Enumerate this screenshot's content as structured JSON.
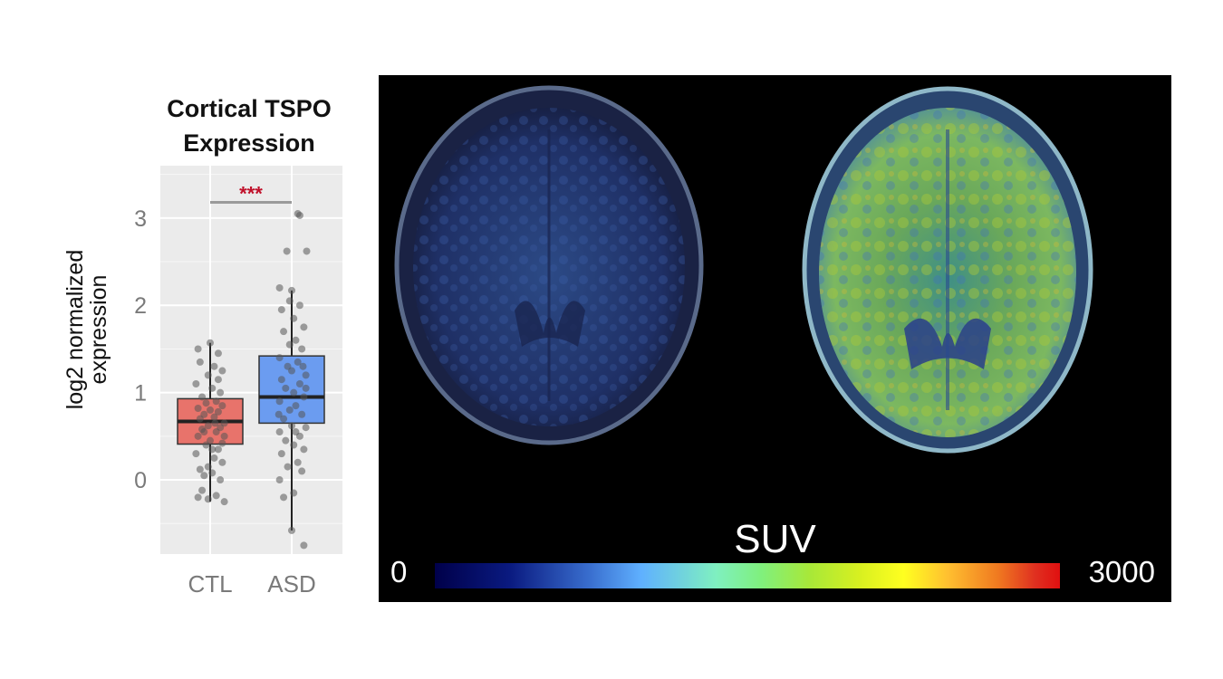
{
  "chart_data": [
    {
      "type": "box",
      "title_lines": [
        "Cortical TSPO",
        "Expression"
      ],
      "ylabel_lines": [
        "log2 normalized",
        "expression"
      ],
      "categories": [
        "CTL",
        "ASD"
      ],
      "yticks": [
        0,
        1,
        2,
        3
      ],
      "ylim": [
        -0.85,
        3.6
      ],
      "grid": true,
      "significance": "***",
      "colors": {
        "CTL": "#e8736b",
        "ASD": "#6b9cf0",
        "significance": "#c0102a"
      },
      "boxes": [
        {
          "name": "CTL",
          "whisker_low": -0.25,
          "q1": 0.41,
          "median": 0.67,
          "q3": 0.93,
          "whisker_high": 1.57
        },
        {
          "name": "ASD",
          "whisker_low": -0.58,
          "q1": 0.65,
          "median": 0.95,
          "q3": 1.42,
          "whisker_high": 2.17
        }
      ],
      "points": {
        "CTL": [
          [
            -0.2,
            -0.12
          ],
          [
            0.15,
            -0.18
          ],
          [
            -0.3,
            -0.2
          ],
          [
            0.35,
            -0.25
          ],
          [
            -0.05,
            -0.22
          ],
          [
            0.25,
            0.0
          ],
          [
            -0.15,
            0.05
          ],
          [
            0.05,
            0.08
          ],
          [
            -0.25,
            0.12
          ],
          [
            0.3,
            0.2
          ],
          [
            0.1,
            0.25
          ],
          [
            -0.35,
            0.3
          ],
          [
            0.2,
            0.35
          ],
          [
            -0.1,
            0.4
          ],
          [
            0.0,
            0.45
          ],
          [
            0.3,
            0.42
          ],
          [
            -0.3,
            0.5
          ],
          [
            0.15,
            0.55
          ],
          [
            -0.2,
            0.58
          ],
          [
            0.25,
            0.6
          ],
          [
            -0.05,
            0.62
          ],
          [
            0.35,
            0.65
          ],
          [
            -0.25,
            0.7
          ],
          [
            0.1,
            0.72
          ],
          [
            -0.15,
            0.75
          ],
          [
            0.2,
            0.78
          ],
          [
            0.0,
            0.8
          ],
          [
            -0.3,
            0.82
          ],
          [
            0.3,
            0.85
          ],
          [
            -0.1,
            0.88
          ],
          [
            0.15,
            0.9
          ],
          [
            -0.2,
            0.95
          ],
          [
            0.25,
            1.0
          ],
          [
            0.05,
            1.05
          ],
          [
            -0.35,
            1.1
          ],
          [
            0.2,
            1.15
          ],
          [
            -0.05,
            1.2
          ],
          [
            0.1,
            1.3
          ],
          [
            -0.25,
            1.35
          ],
          [
            0.3,
            1.25
          ],
          [
            0.0,
            1.57
          ],
          [
            -0.3,
            1.5
          ],
          [
            0.2,
            1.45
          ],
          [
            -0.15,
            0.55
          ],
          [
            0.05,
            0.35
          ],
          [
            0.35,
            0.5
          ],
          [
            -0.05,
            0.15
          ],
          [
            0.12,
            0.65
          ]
        ],
        "ASD": [
          [
            0.0,
            -0.58
          ],
          [
            0.3,
            -0.75
          ],
          [
            -0.2,
            -0.2
          ],
          [
            0.05,
            -0.15
          ],
          [
            -0.3,
            0.0
          ],
          [
            0.25,
            0.1
          ],
          [
            -0.1,
            0.15
          ],
          [
            0.15,
            0.2
          ],
          [
            -0.25,
            0.3
          ],
          [
            0.3,
            0.35
          ],
          [
            0.05,
            0.4
          ],
          [
            -0.15,
            0.45
          ],
          [
            0.2,
            0.5
          ],
          [
            -0.3,
            0.55
          ],
          [
            0.35,
            0.6
          ],
          [
            0.0,
            0.62
          ],
          [
            -0.2,
            0.7
          ],
          [
            0.25,
            0.75
          ],
          [
            -0.05,
            0.8
          ],
          [
            0.1,
            0.85
          ],
          [
            -0.3,
            0.9
          ],
          [
            0.3,
            0.95
          ],
          [
            0.05,
            1.0
          ],
          [
            -0.15,
            1.05
          ],
          [
            0.2,
            1.1
          ],
          [
            -0.25,
            1.15
          ],
          [
            0.35,
            1.2
          ],
          [
            0.0,
            1.25
          ],
          [
            -0.1,
            1.3
          ],
          [
            0.15,
            1.35
          ],
          [
            -0.3,
            1.4
          ],
          [
            0.25,
            1.5
          ],
          [
            -0.05,
            1.55
          ],
          [
            0.1,
            1.6
          ],
          [
            -0.2,
            1.7
          ],
          [
            0.3,
            1.75
          ],
          [
            0.05,
            1.85
          ],
          [
            -0.25,
            1.95
          ],
          [
            0.2,
            2.0
          ],
          [
            -0.05,
            2.05
          ],
          [
            -0.3,
            2.2
          ],
          [
            0.0,
            2.17
          ],
          [
            -0.12,
            2.62
          ],
          [
            0.15,
            3.05
          ],
          [
            0.2,
            3.03
          ],
          [
            0.37,
            2.62
          ],
          [
            0.35,
            1.05
          ],
          [
            -0.32,
            0.75
          ],
          [
            0.1,
            0.55
          ],
          [
            0.28,
            1.3
          ]
        ]
      }
    },
    {
      "type": "colorbar",
      "title": "SUV",
      "min_label": "0",
      "max_label": "3000"
    }
  ]
}
